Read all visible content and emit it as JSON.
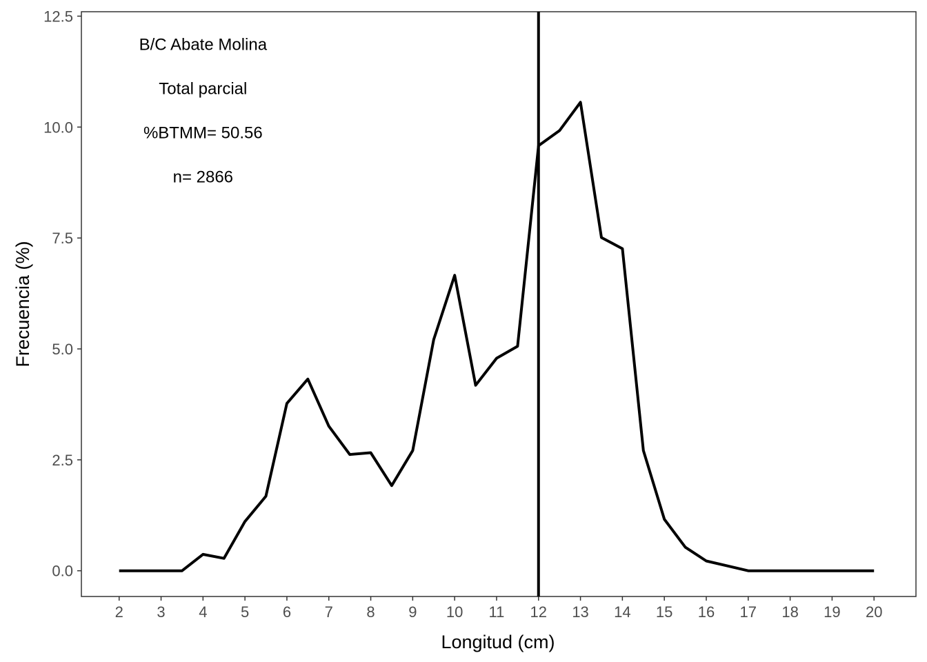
{
  "chart_data": {
    "type": "line",
    "xlabel": "Longitud (cm)",
    "ylabel": "Frecuencia (%)",
    "xlim": [
      1.1,
      21.0
    ],
    "ylim": [
      -0.58,
      12.6
    ],
    "x_ticks": [
      2,
      3,
      4,
      5,
      6,
      7,
      8,
      9,
      10,
      11,
      12,
      13,
      14,
      15,
      16,
      17,
      18,
      19,
      20
    ],
    "x_tick_labels": [
      "2",
      "3",
      "4",
      "5",
      "6",
      "7",
      "8",
      "9",
      "10",
      "11",
      "12",
      "13",
      "14",
      "15",
      "16",
      "17",
      "18",
      "19",
      "20"
    ],
    "y_ticks": [
      0,
      2.5,
      5,
      7.5,
      10,
      12.5
    ],
    "y_tick_labels": [
      "0.0",
      "2.5",
      "5.0",
      "7.5",
      "10.0",
      "12.5"
    ],
    "grid": false,
    "line_color": "#000000",
    "series": [
      {
        "x": [
          2,
          2.5,
          3,
          3.5,
          4,
          4.5,
          5,
          5.5,
          6,
          6.5,
          7,
          7.5,
          8,
          8.5,
          9,
          9.5,
          10,
          10.5,
          11,
          11.5,
          12,
          12.5,
          13,
          13.5,
          14,
          14.5,
          15,
          15.5,
          16,
          16.5,
          17,
          17.5,
          18,
          18.5,
          19,
          19.5,
          20
        ],
        "values": [
          0,
          0,
          0,
          0,
          0.37,
          0.28,
          1.11,
          1.68,
          3.77,
          4.32,
          3.26,
          2.62,
          2.66,
          1.92,
          2.71,
          5.21,
          6.66,
          4.18,
          4.79,
          5.06,
          9.58,
          9.92,
          10.56,
          7.51,
          7.26,
          2.71,
          1.16,
          0.53,
          0.22,
          0.11,
          0,
          0,
          0,
          0,
          0,
          0,
          0
        ]
      }
    ],
    "vline": {
      "x": 12
    },
    "annotations": [
      {
        "text": "B/C Abate Molina",
        "x": 4.0,
        "y": 11.86
      },
      {
        "text": "Total parcial",
        "x": 4.0,
        "y": 10.87
      },
      {
        "text": "%BTMM= 50.56",
        "x": 4.0,
        "y": 9.87
      },
      {
        "text": "n= 2866",
        "x": 4.0,
        "y": 8.88
      }
    ]
  }
}
